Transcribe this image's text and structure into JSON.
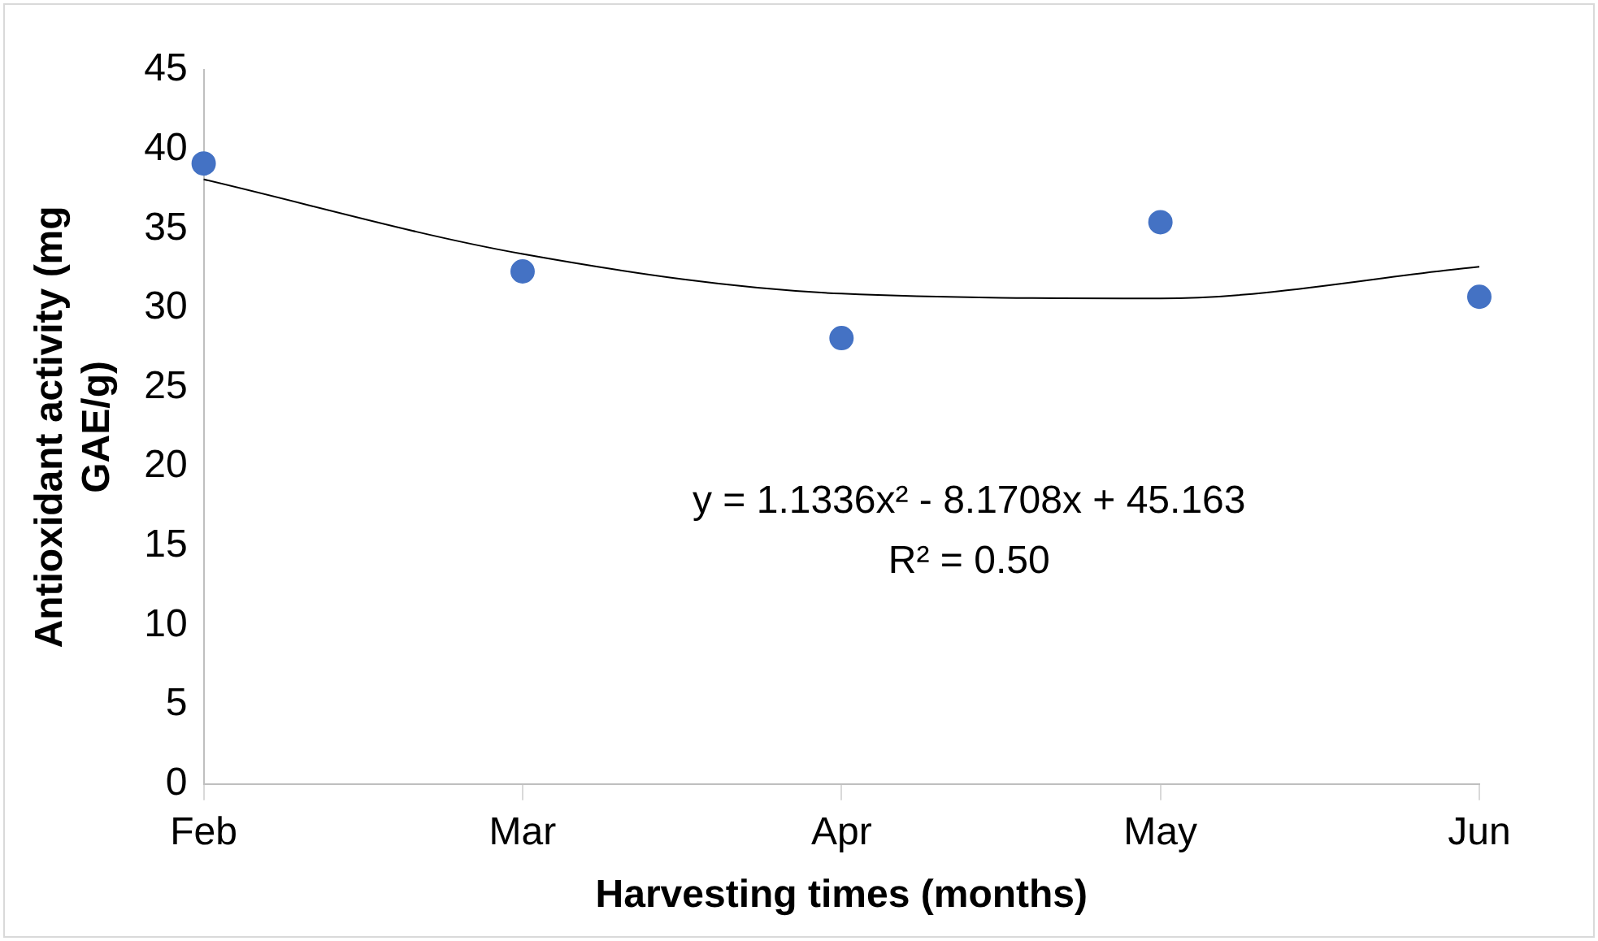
{
  "chart_data": {
    "type": "scatter",
    "xlabel": "Harvesting times (months)",
    "ylabel": "Antioxidant activity (mg GAE/g)",
    "categories": [
      "Feb",
      "Mar",
      "Apr",
      "May",
      "Jun"
    ],
    "ylim": [
      0,
      45
    ],
    "yticks": [
      0,
      5,
      10,
      15,
      20,
      25,
      30,
      35,
      40,
      45
    ],
    "grid": false,
    "legend": false,
    "marker": "circle",
    "series": [
      {
        "color": "#4472c4",
        "values": [
          39.1,
          32.3,
          28.1,
          35.4,
          30.7
        ]
      },
      {
        "type": "line",
        "color": "#000000",
        "marker": "none",
        "values": [
          38.1,
          33.4,
          30.9,
          30.6,
          32.6
        ]
      }
    ],
    "annotations": [
      "y = 1.1336x² - 8.1708x + 45.163",
      "R² = 0.50"
    ]
  }
}
